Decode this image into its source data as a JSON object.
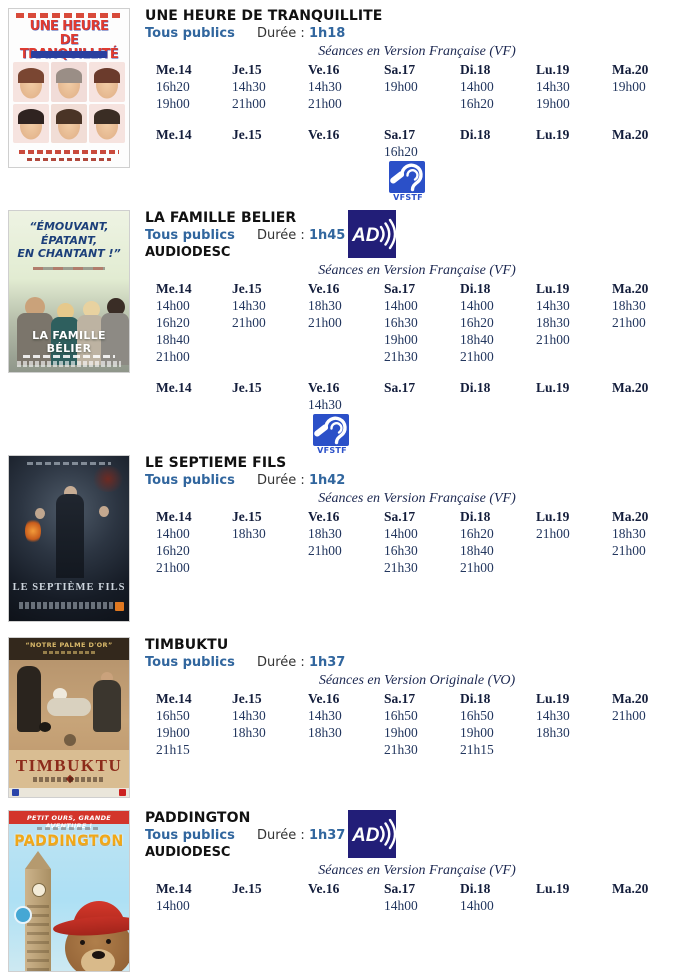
{
  "days": [
    "Me.14",
    "Je.15",
    "Ve.16",
    "Sa.17",
    "Di.18",
    "Lu.19",
    "Ma.20"
  ],
  "labels": {
    "duration": "Durée :",
    "audiodesc": "AUDIODESC",
    "vfstf": "VFSTF",
    "ad": "AD"
  },
  "colors": {
    "rating_blue": "#31669e",
    "table_navy": "#22365e",
    "ad_badge_navy": "#221e78",
    "vfstf_blue": "#2b50c8"
  },
  "movies": [
    {
      "title": "UNE HEURE DE TRANQUILLITE",
      "rating": "Tous publics",
      "duration": "1h18",
      "version_note": "Séances en Version Française (VF)",
      "vf_rows": [
        [
          "16h20",
          "14h30",
          "14h30",
          "19h00",
          "14h00",
          "14h30",
          "19h00"
        ],
        [
          "19h00",
          "21h00",
          "21h00",
          "",
          "16h20",
          "19h00",
          ""
        ]
      ],
      "vfstf": {
        "col": 3,
        "day": "Sa.17",
        "time": "16h20"
      },
      "poster": {
        "title_line1": "UNE HEURE",
        "title_line2": "DE TRANQUILLITÉ"
      }
    },
    {
      "title": "LA FAMILLE BELIER",
      "rating": "Tous publics",
      "duration": "1h45",
      "version_note": "Séances en Version Française (VF)",
      "vf_rows": [
        [
          "14h00",
          "14h30",
          "18h30",
          "14h00",
          "14h00",
          "14h30",
          "18h30"
        ],
        [
          "16h20",
          "21h00",
          "21h00",
          "16h30",
          "16h20",
          "18h30",
          "21h00"
        ],
        [
          "18h40",
          "",
          "",
          "19h00",
          "18h40",
          "21h00",
          ""
        ],
        [
          "21h00",
          "",
          "",
          "21h30",
          "21h00",
          "",
          ""
        ]
      ],
      "vfstf": {
        "col": 2,
        "day": "Ve.16",
        "time": "14h30"
      },
      "poster": {
        "quote1": "“ÉMOUVANT,",
        "quote2": "ÉPATANT,",
        "quote3": "EN CHANTANT !”",
        "title": "LA FAMILLE BÉLIER"
      }
    },
    {
      "title": "LE SEPTIEME FILS",
      "rating": "Tous publics",
      "duration": "1h42",
      "version_note": "Séances en Version Française (VF)",
      "vf_rows": [
        [
          "14h00",
          "18h30",
          "18h30",
          "14h00",
          "16h20",
          "21h00",
          "18h30"
        ],
        [
          "16h20",
          "",
          "21h00",
          "16h30",
          "18h40",
          "",
          "21h00"
        ],
        [
          "21h00",
          "",
          "",
          "21h30",
          "21h00",
          "",
          ""
        ]
      ],
      "poster": {
        "title": "LE SEPTIÈME FILS"
      }
    },
    {
      "title": "TIMBUKTU",
      "rating": "Tous publics",
      "duration": "1h37",
      "version_note": "Séances en Version Originale (VO)",
      "vf_rows": [
        [
          "16h50",
          "14h30",
          "14h30",
          "16h50",
          "16h50",
          "14h30",
          "21h00"
        ],
        [
          "19h00",
          "18h30",
          "18h30",
          "19h00",
          "19h00",
          "18h30",
          ""
        ],
        [
          "21h15",
          "",
          "",
          "21h30",
          "21h15",
          "",
          ""
        ]
      ],
      "poster": {
        "quote": "“NOTRE PALME D'OR”",
        "title": "TIMBUKTU"
      }
    },
    {
      "title": "PADDINGTON",
      "rating": "Tous publics",
      "duration": "1h37",
      "version_note": "Séances en Version Française (VF)",
      "vf_rows": [
        [
          "14h00",
          "",
          "",
          "14h00",
          "14h00",
          "",
          ""
        ]
      ],
      "poster": {
        "banner": "PETIT OURS, GRANDE AVENTURE !",
        "title": "PADDINGTON"
      }
    }
  ]
}
